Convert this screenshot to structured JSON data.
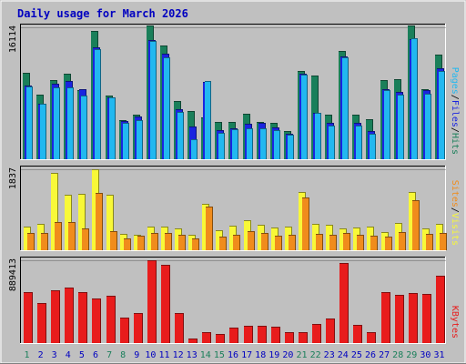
{
  "title": "Daily usage for March 2026",
  "colors": {
    "background": "#c0c0c0",
    "frame": "#ffffff",
    "title": "#0000c0",
    "hits": "#1a7f5a",
    "files": "#1a24e0",
    "pages": "#22b8f0",
    "visits": "#f8f838",
    "sites": "#f08c1c",
    "kbytes": "#e81c1c",
    "weekday_label": "#1a7f5a",
    "weekend_label": "#1a7f5a",
    "day_label": "#0000c0"
  },
  "chart_data": [
    {
      "type": "bar",
      "panel": "top",
      "y_tick_label": "16114",
      "ylim": [
        0,
        16114
      ],
      "legend": [
        {
          "name": "Pages",
          "color": "#22b8f0"
        },
        {
          "name": "Files",
          "color": "#1a24e0"
        },
        {
          "name": "Hits",
          "color": "#1a7f5a"
        }
      ],
      "categories": [
        "1",
        "2",
        "3",
        "4",
        "5",
        "6",
        "7",
        "8",
        "9",
        "10",
        "11",
        "12",
        "13",
        "14",
        "15",
        "16",
        "17",
        "18",
        "19",
        "20",
        "21",
        "22",
        "23",
        "24",
        "25",
        "26",
        "27",
        "28",
        "29",
        "30",
        "31"
      ],
      "series": [
        {
          "name": "Hits",
          "values": [
            10600,
            7900,
            9700,
            10500,
            8400,
            15700,
            7800,
            4800,
            5400,
            16300,
            13900,
            7100,
            5900,
            5100,
            4600,
            4600,
            5600,
            4600,
            4400,
            3400,
            10800,
            10200,
            5500,
            13200,
            5500,
            4900,
            9700,
            9800,
            16300,
            8600,
            12800
          ]
        },
        {
          "name": "Files",
          "values": [
            9000,
            6800,
            9200,
            9600,
            8600,
            13700,
            7600,
            4700,
            5200,
            14600,
            12900,
            6100,
            4000,
            9500,
            3600,
            3800,
            4300,
            4400,
            3900,
            3100,
            10400,
            5700,
            4400,
            12600,
            4400,
            3500,
            8600,
            8200,
            14700,
            8400,
            11100
          ]
        },
        {
          "name": "Pages",
          "values": [
            8900,
            6800,
            8800,
            8800,
            7800,
            13400,
            7600,
            4500,
            4800,
            14400,
            12500,
            5800,
            2400,
            9600,
            3200,
            3700,
            3800,
            3800,
            3600,
            3000,
            10300,
            5700,
            4100,
            12400,
            4100,
            3100,
            8400,
            7900,
            14800,
            8000,
            10800
          ]
        }
      ]
    },
    {
      "type": "bar",
      "panel": "middle",
      "y_tick_label": "1837",
      "ylim": [
        0,
        1837
      ],
      "legend": [
        {
          "name": "Sites",
          "color": "#f08c1c"
        },
        {
          "name": "Visits",
          "color": "#f8f838"
        }
      ],
      "categories": [
        "1",
        "2",
        "3",
        "4",
        "5",
        "6",
        "7",
        "8",
        "9",
        "10",
        "11",
        "12",
        "13",
        "14",
        "15",
        "16",
        "17",
        "18",
        "19",
        "20",
        "21",
        "22",
        "23",
        "24",
        "25",
        "26",
        "27",
        "28",
        "29",
        "30",
        "31"
      ],
      "series": [
        {
          "name": "Visits",
          "values": [
            540,
            590,
            1760,
            1260,
            1270,
            1837,
            1260,
            370,
            360,
            540,
            540,
            490,
            360,
            1060,
            460,
            560,
            680,
            580,
            520,
            530,
            1330,
            590,
            570,
            490,
            520,
            540,
            420,
            610,
            1330,
            500,
            600
          ]
        },
        {
          "name": "Sites",
          "values": [
            390,
            400,
            630,
            650,
            490,
            1300,
            430,
            270,
            330,
            390,
            400,
            360,
            260,
            1000,
            310,
            360,
            440,
            400,
            330,
            360,
            1200,
            380,
            350,
            400,
            350,
            330,
            300,
            410,
            1140,
            370,
            390
          ]
        }
      ]
    },
    {
      "type": "bar",
      "panel": "bottom",
      "y_tick_label": "889413",
      "ylim": [
        0,
        889413
      ],
      "legend": [
        {
          "name": "KBytes",
          "color": "#e81c1c"
        }
      ],
      "categories": [
        "1",
        "2",
        "3",
        "4",
        "5",
        "6",
        "7",
        "8",
        "9",
        "10",
        "11",
        "12",
        "13",
        "14",
        "15",
        "16",
        "17",
        "18",
        "19",
        "20",
        "21",
        "22",
        "23",
        "24",
        "25",
        "26",
        "27",
        "28",
        "29",
        "30",
        "31"
      ],
      "series": [
        {
          "name": "KBytes",
          "values": [
            550000,
            430000,
            570000,
            600000,
            550000,
            480000,
            510000,
            270000,
            320000,
            889413,
            840000,
            320000,
            50000,
            120000,
            100000,
            170000,
            190000,
            190000,
            180000,
            120000,
            120000,
            210000,
            260000,
            860000,
            200000,
            120000,
            550000,
            520000,
            540000,
            530000,
            720000
          ]
        }
      ]
    }
  ],
  "x_axis": {
    "labels": [
      "1",
      "2",
      "3",
      "4",
      "5",
      "6",
      "7",
      "8",
      "9",
      "10",
      "11",
      "12",
      "13",
      "14",
      "15",
      "16",
      "17",
      "18",
      "19",
      "20",
      "21",
      "22",
      "23",
      "24",
      "25",
      "26",
      "27",
      "28",
      "29",
      "30",
      "31"
    ],
    "weekend": [
      1,
      7,
      8,
      14,
      15,
      21,
      22,
      28,
      29
    ]
  }
}
